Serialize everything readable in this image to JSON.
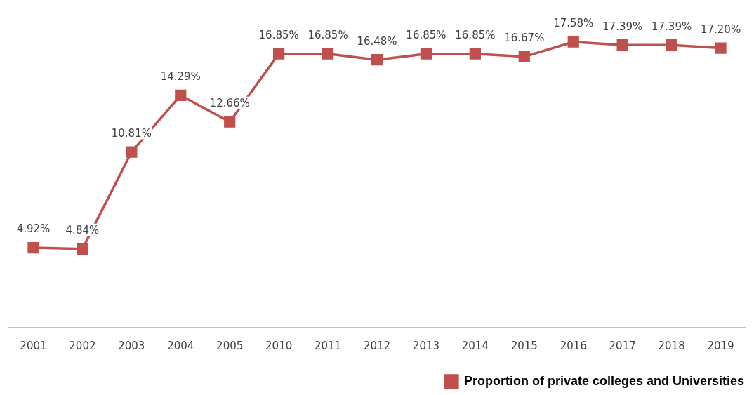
{
  "chart_data": {
    "type": "line",
    "categories": [
      "2001",
      "2002",
      "2003",
      "2004",
      "2005",
      "2010",
      "2011",
      "2012",
      "2013",
      "2014",
      "2015",
      "2016",
      "2017",
      "2018",
      "2019"
    ],
    "series": [
      {
        "name": "Proportion of private colleges and Universities",
        "color": "#c0504d",
        "values": [
          4.92,
          4.84,
          10.81,
          14.29,
          12.66,
          16.85,
          16.85,
          16.48,
          16.85,
          16.85,
          16.67,
          17.58,
          17.39,
          17.39,
          17.2
        ],
        "value_labels": [
          "4.92%",
          "4.84%",
          "10.81%",
          "14.29%",
          "12.66%",
          "16.85%",
          "16.85%",
          "16.48%",
          "16.85%",
          "16.85%",
          "16.67%",
          "17.58%",
          "17.39%",
          "17.39%",
          "17.20%"
        ]
      }
    ],
    "tick_labels": "x",
    "grid": false,
    "legend": "bottom right",
    "marker": "square",
    "line_style": "solid"
  }
}
